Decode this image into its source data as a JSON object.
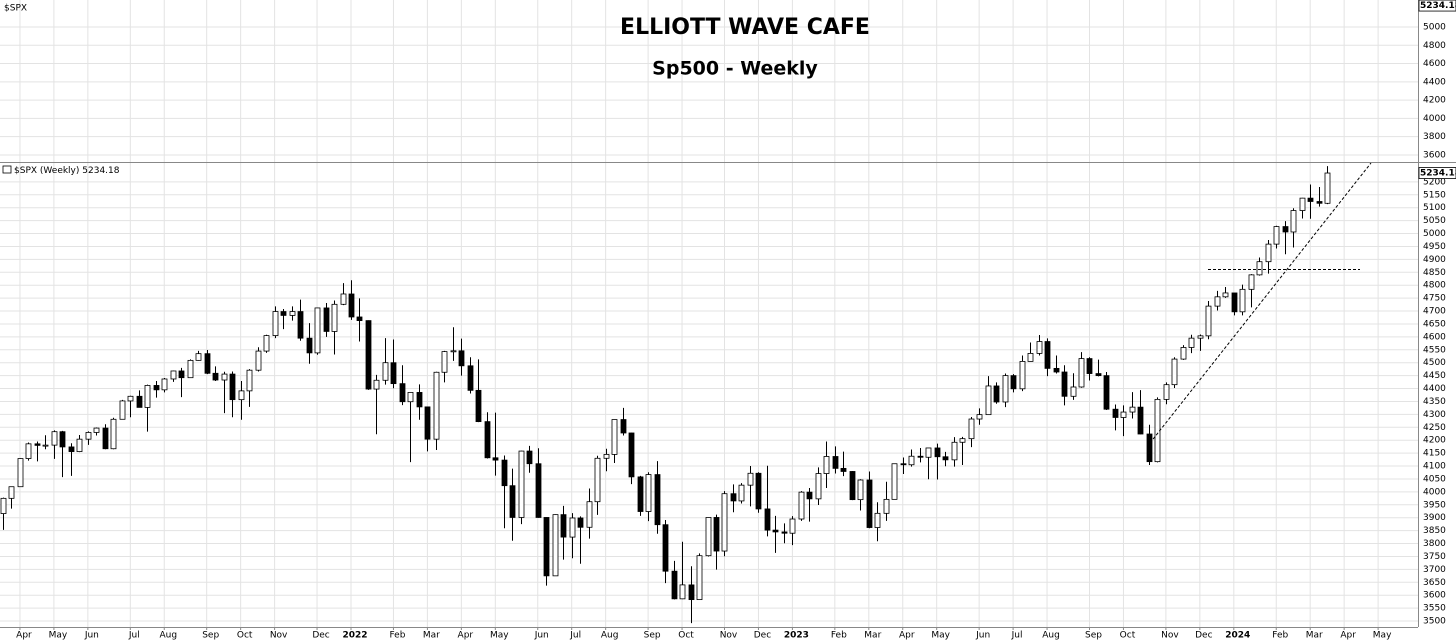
{
  "chart_data": {
    "type": "candlestick",
    "title": "ELLIOTT WAVE CAFE",
    "subtitle": "Sp500 - Weekly",
    "legend": "$SPX (Weekly)",
    "up_color": "#ffffff",
    "down_color": "#000000",
    "grid": true,
    "top_panel": {
      "label": "$SPX",
      "ylim": [
        3523,
        5295
      ],
      "yticks": [
        3600,
        3800,
        4000,
        4200,
        4400,
        4600,
        4800,
        5000
      ]
    },
    "xlim": [
      -0.35,
      166.7
    ],
    "xticks": [
      {
        "value": 2,
        "label": "Apr"
      },
      {
        "value": 6,
        "label": "May"
      },
      {
        "value": 10,
        "label": "Jun"
      },
      {
        "value": 15,
        "label": "Jul"
      },
      {
        "value": 19,
        "label": "Aug"
      },
      {
        "value": 24,
        "label": "Sep"
      },
      {
        "value": 28,
        "label": "Oct"
      },
      {
        "value": 32,
        "label": "Nov"
      },
      {
        "value": 37,
        "label": "Dec"
      },
      {
        "value": 41,
        "label": "2022"
      },
      {
        "value": 46,
        "label": "Feb"
      },
      {
        "value": 50,
        "label": "Mar"
      },
      {
        "value": 54,
        "label": "Apr"
      },
      {
        "value": 58,
        "label": "May"
      },
      {
        "value": 63,
        "label": "Jun"
      },
      {
        "value": 67,
        "label": "Jul"
      },
      {
        "value": 71,
        "label": "Aug"
      },
      {
        "value": 76,
        "label": "Sep"
      },
      {
        "value": 80,
        "label": "Oct"
      },
      {
        "value": 85,
        "label": "Nov"
      },
      {
        "value": 89,
        "label": "Dec"
      },
      {
        "value": 93,
        "label": "2023"
      },
      {
        "value": 98,
        "label": "Feb"
      },
      {
        "value": 102,
        "label": "Mar"
      },
      {
        "value": 106,
        "label": "Apr"
      },
      {
        "value": 110,
        "label": "May"
      },
      {
        "value": 115,
        "label": "Jun"
      },
      {
        "value": 119,
        "label": "Jul"
      },
      {
        "value": 123,
        "label": "Aug"
      },
      {
        "value": 128,
        "label": "Sep"
      },
      {
        "value": 132,
        "label": "Oct"
      },
      {
        "value": 137,
        "label": "Nov"
      },
      {
        "value": 141,
        "label": "Dec"
      },
      {
        "value": 145,
        "label": "2024"
      },
      {
        "value": 150,
        "label": "Feb"
      },
      {
        "value": 154,
        "label": "Mar"
      },
      {
        "value": 158,
        "label": "Apr"
      },
      {
        "value": 162,
        "label": "May"
      }
    ],
    "ylim": [
      3477,
      5273
    ],
    "yticks": [
      3500,
      3550,
      3600,
      3650,
      3700,
      3750,
      3800,
      3850,
      3900,
      3950,
      4000,
      4050,
      4100,
      4150,
      4200,
      4250,
      4300,
      4350,
      4400,
      4450,
      4500,
      4550,
      4600,
      4650,
      4700,
      4750,
      4800,
      4850,
      4900,
      4950,
      5000,
      5050,
      5100,
      5150,
      5200
    ],
    "open": [
      3916,
      3975,
      4020,
      4129,
      4186,
      4180,
      4181,
      4233,
      4174,
      4156,
      4204,
      4230,
      4247,
      4167,
      4281,
      4352,
      4370,
      4327,
      4412,
      4395,
      4437,
      4468,
      4442,
      4509,
      4535,
      4459,
      4433,
      4456,
      4357,
      4391,
      4471,
      4545,
      4605,
      4698,
      4683,
      4698,
      4595,
      4538,
      4712,
      4621,
      4726,
      4766,
      4677,
      4663,
      4398,
      4432,
      4500,
      4419,
      4349,
      4385,
      4329,
      4204,
      4463,
      4543,
      4546,
      4488,
      4393,
      4272,
      4132,
      4123,
      4024,
      3901,
      4158,
      4109,
      3901,
      3675,
      3912,
      3825,
      3899,
      3863,
      3962,
      4130,
      4145,
      4280,
      4228,
      4058,
      3924,
      4067,
      3873,
      3693,
      3586,
      3640,
      3583,
      3753,
      3901,
      3771,
      3993,
      3965,
      4026,
      4072,
      3934,
      3852,
      3845,
      3840,
      3895,
      3999,
      3973,
      4071,
      4137,
      4091,
      4079,
      3970,
      4046,
      3862,
      3917,
      3971,
      4109,
      4105,
      4138,
      4134,
      4170,
      4136,
      4124,
      4192,
      4206,
      4282,
      4299,
      4410,
      4348,
      4450,
      4399,
      4505,
      4536,
      4582,
      4478,
      4464,
      4370,
      4406,
      4516,
      4458,
      4450,
      4320,
      4288,
      4309,
      4328,
      4224,
      4117,
      4358,
      4415,
      4514,
      4559,
      4595,
      4604,
      4719,
      4755,
      4770,
      4697,
      4784,
      4840,
      4891,
      4959,
      5027,
      5006,
      5089,
      5137,
      5124,
      5117
    ],
    "high": [
      3978,
      4020,
      4130,
      4191,
      4195,
      4219,
      4238,
      4236,
      4188,
      4220,
      4234,
      4249,
      4262,
      4287,
      4356,
      4372,
      4393,
      4415,
      4429,
      4441,
      4470,
      4480,
      4513,
      4546,
      4549,
      4486,
      4465,
      4466,
      4429,
      4475,
      4560,
      4608,
      4718,
      4708,
      4718,
      4744,
      4653,
      4713,
      4731,
      4741,
      4808,
      4819,
      4749,
      4664,
      4453,
      4595,
      4590,
      4490,
      4386,
      4416,
      4330,
      4465,
      4546,
      4637,
      4593,
      4521,
      4513,
      4308,
      4307,
      4141,
      4090,
      4159,
      4178,
      4169,
      3902,
      3913,
      3946,
      3918,
      3905,
      4013,
      4140,
      4167,
      4280,
      4325,
      4229,
      4062,
      4076,
      4119,
      3891,
      3733,
      3807,
      3712,
      3762,
      3902,
      3912,
      4003,
      4029,
      4034,
      4100,
      4076,
      4101,
      3907,
      3878,
      3906,
      4003,
      4015,
      4095,
      4195,
      4176,
      4156,
      4081,
      4049,
      4079,
      3960,
      4039,
      4110,
      4133,
      4164,
      4170,
      4170,
      4187,
      4155,
      4212,
      4213,
      4290,
      4323,
      4448,
      4424,
      4458,
      4456,
      4528,
      4578,
      4607,
      4594,
      4528,
      4490,
      4459,
      4541,
      4521,
      4512,
      4464,
      4338,
      4335,
      4386,
      4394,
      4260,
      4366,
      4424,
      4521,
      4568,
      4608,
      4609,
      4739,
      4778,
      4793,
      4770,
      4802,
      4843,
      4907,
      4975,
      5030,
      5048,
      5098,
      5138,
      5190,
      5180,
      5261
    ],
    "low": [
      3853,
      3935,
      4020,
      4121,
      4118,
      4165,
      4128,
      4057,
      4062,
      4154,
      4182,
      4218,
      4165,
      4165,
      4280,
      4289,
      4327,
      4233,
      4365,
      4385,
      4426,
      4367,
      4441,
      4508,
      4456,
      4429,
      4305,
      4289,
      4279,
      4329,
      4466,
      4538,
      4595,
      4630,
      4663,
      4585,
      4496,
      4531,
      4600,
      4532,
      4723,
      4666,
      4582,
      4395,
      4223,
      4415,
      4401,
      4336,
      4115,
      4279,
      4157,
      4162,
      4424,
      4507,
      4450,
      4381,
      4270,
      4129,
      4063,
      3859,
      3811,
      3875,
      4074,
      3900,
      3637,
      3675,
      3738,
      3743,
      3722,
      3819,
      3911,
      4080,
      4112,
      4218,
      4030,
      3907,
      3887,
      3838,
      3647,
      3584,
      3585,
      3492,
      3582,
      3750,
      3699,
      3751,
      3921,
      3955,
      3944,
      3919,
      3828,
      3764,
      3801,
      3794,
      3888,
      3885,
      3949,
      4015,
      4071,
      4061,
      3968,
      3928,
      3859,
      3809,
      3888,
      3971,
      4069,
      4098,
      4114,
      4049,
      4048,
      4099,
      4098,
      4104,
      4173,
      4260,
      4298,
      4341,
      4328,
      4385,
      4390,
      4505,
      4528,
      4448,
      4458,
      4335,
      4356,
      4403,
      4431,
      4447,
      4317,
      4238,
      4216,
      4284,
      4223,
      4104,
      4114,
      4339,
      4402,
      4511,
      4537,
      4546,
      4591,
      4702,
      4751,
      4683,
      4683,
      4714,
      4837,
      4845,
      4942,
      4920,
      4946,
      5058,
      5057,
      5104,
      5114
    ],
    "close": [
      3975,
      4020,
      4129,
      4186,
      4180,
      4181,
      4233,
      4174,
      4156,
      4204,
      4230,
      4247,
      4167,
      4281,
      4352,
      4370,
      4327,
      4412,
      4395,
      4437,
      4468,
      4442,
      4509,
      4535,
      4459,
      4433,
      4456,
      4357,
      4391,
      4471,
      4545,
      4605,
      4698,
      4683,
      4698,
      4595,
      4538,
      4712,
      4621,
      4726,
      4766,
      4677,
      4663,
      4398,
      4432,
      4500,
      4419,
      4349,
      4385,
      4329,
      4204,
      4463,
      4543,
      4546,
      4488,
      4393,
      4272,
      4132,
      4123,
      4024,
      3901,
      4158,
      4109,
      3901,
      3675,
      3912,
      3825,
      3899,
      3863,
      3962,
      4130,
      4145,
      4280,
      4228,
      4058,
      3924,
      4067,
      3873,
      3693,
      3586,
      3640,
      3583,
      3753,
      3901,
      3771,
      3993,
      3965,
      4026,
      4072,
      3934,
      3852,
      3845,
      3840,
      3895,
      3999,
      3973,
      4071,
      4137,
      4091,
      4079,
      3970,
      4046,
      3862,
      3917,
      3971,
      4109,
      4105,
      4138,
      4134,
      4170,
      4136,
      4124,
      4192,
      4206,
      4282,
      4299,
      4410,
      4348,
      4450,
      4399,
      4505,
      4536,
      4582,
      4478,
      4464,
      4370,
      4406,
      4516,
      4458,
      4450,
      4320,
      4288,
      4309,
      4328,
      4224,
      4117,
      4358,
      4415,
      4514,
      4559,
      4595,
      4604,
      4719,
      4755,
      4770,
      4697,
      4784,
      4840,
      4891,
      4959,
      5027,
      5006,
      5089,
      5137,
      5124,
      5117,
      5234.18
    ]
  }
}
